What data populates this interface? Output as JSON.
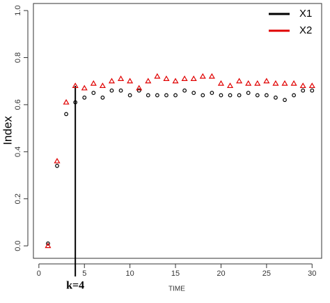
{
  "chart_data": {
    "type": "scatter",
    "x_label": "TIME",
    "y_label": "Index",
    "x": [
      1,
      2,
      3,
      4,
      5,
      6,
      7,
      8,
      9,
      10,
      11,
      12,
      13,
      14,
      15,
      16,
      17,
      18,
      19,
      20,
      21,
      22,
      23,
      24,
      25,
      26,
      27,
      28,
      29,
      30
    ],
    "series": [
      {
        "name": "X1",
        "color": "#000000",
        "marker": "circle",
        "values": [
          0.01,
          0.34,
          0.56,
          0.61,
          0.63,
          0.65,
          0.63,
          0.66,
          0.66,
          0.64,
          0.66,
          0.64,
          0.64,
          0.64,
          0.64,
          0.66,
          0.65,
          0.64,
          0.65,
          0.64,
          0.64,
          0.64,
          0.65,
          0.64,
          0.64,
          0.63,
          0.62,
          0.64,
          0.66,
          0.66
        ]
      },
      {
        "name": "X2",
        "color": "#e00000",
        "marker": "triangle",
        "values": [
          0.0,
          0.36,
          0.61,
          0.68,
          0.67,
          0.69,
          0.68,
          0.7,
          0.71,
          0.7,
          0.67,
          0.7,
          0.72,
          0.71,
          0.7,
          0.71,
          0.71,
          0.72,
          0.72,
          0.69,
          0.68,
          0.7,
          0.69,
          0.69,
          0.7,
          0.69,
          0.69,
          0.69,
          0.68,
          0.68
        ]
      }
    ],
    "xlim": [
      -0.6,
      31.05
    ],
    "ylim": [
      -0.053,
      1.03
    ],
    "xticks": [
      0,
      5,
      10,
      15,
      20,
      25,
      30
    ],
    "yticks": [
      {
        "value": 0,
        "label": "0.0"
      },
      0.2,
      0.4,
      0.6,
      0.8,
      {
        "value": 1,
        "label": "1.0"
      }
    ],
    "vline": {
      "x": 4,
      "top": 0.68,
      "label": "k=4"
    },
    "legend": "top-right"
  }
}
